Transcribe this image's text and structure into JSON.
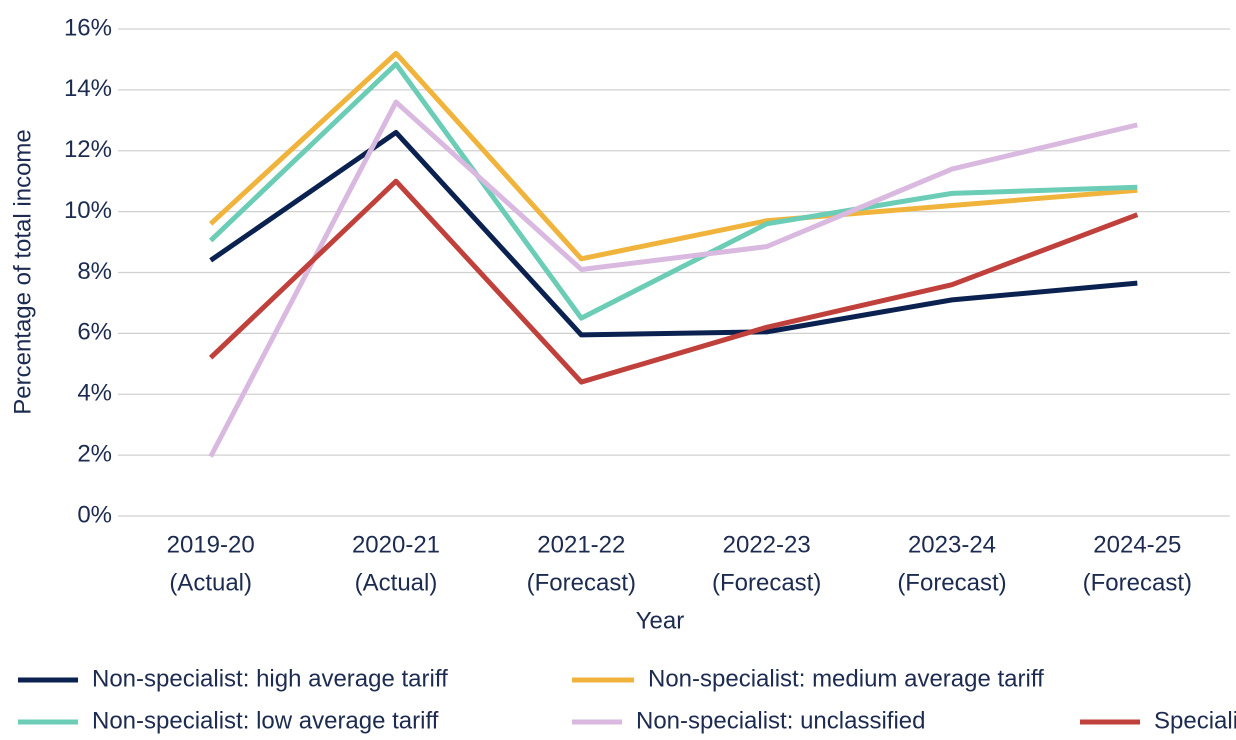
{
  "chart_data": {
    "type": "line",
    "x_label": "Year",
    "y_label": "Percentage of total income",
    "categories": [
      [
        "2019-20",
        "(Actual)"
      ],
      [
        "2020-21",
        "(Actual)"
      ],
      [
        "2021-22",
        "(Forecast)"
      ],
      [
        "2022-23",
        "(Forecast)"
      ],
      [
        "2023-24",
        "(Forecast)"
      ],
      [
        "2024-25",
        "(Forecast)"
      ]
    ],
    "series": [
      {
        "name": "Non-specialist: high average tariff",
        "color": "#0b2250",
        "values": [
          8.4,
          12.6,
          5.95,
          6.05,
          7.1,
          7.65
        ]
      },
      {
        "name": "Non-specialist: medium average tariff",
        "color": "#f0b43c",
        "values": [
          9.6,
          15.2,
          8.45,
          9.7,
          10.2,
          10.7
        ]
      },
      {
        "name": "Non-specialist: low average tariff",
        "color": "#6ccdb7",
        "values": [
          9.05,
          14.85,
          6.5,
          9.6,
          10.6,
          10.8
        ]
      },
      {
        "name": "Non-specialist: unclassified",
        "color": "#d9b9df",
        "values": [
          1.95,
          13.6,
          8.1,
          8.85,
          11.4,
          12.85
        ]
      },
      {
        "name": "Specialist",
        "color": "#c0403c",
        "values": [
          5.2,
          11.0,
          4.4,
          6.2,
          7.6,
          9.9
        ]
      }
    ],
    "ylim": [
      0,
      16
    ],
    "yticks": [
      {
        "value": 0,
        "label": "0%"
      },
      {
        "value": 2,
        "label": "2%"
      },
      {
        "value": 4,
        "label": "4%"
      },
      {
        "value": 6,
        "label": "6%"
      },
      {
        "value": 8,
        "label": "8%"
      },
      {
        "value": 10,
        "label": "10%"
      },
      {
        "value": 12,
        "label": "12%"
      },
      {
        "value": 14,
        "label": "14%"
      },
      {
        "value": 16,
        "label": "16%"
      }
    ],
    "grid": true,
    "legend": "bottom"
  }
}
